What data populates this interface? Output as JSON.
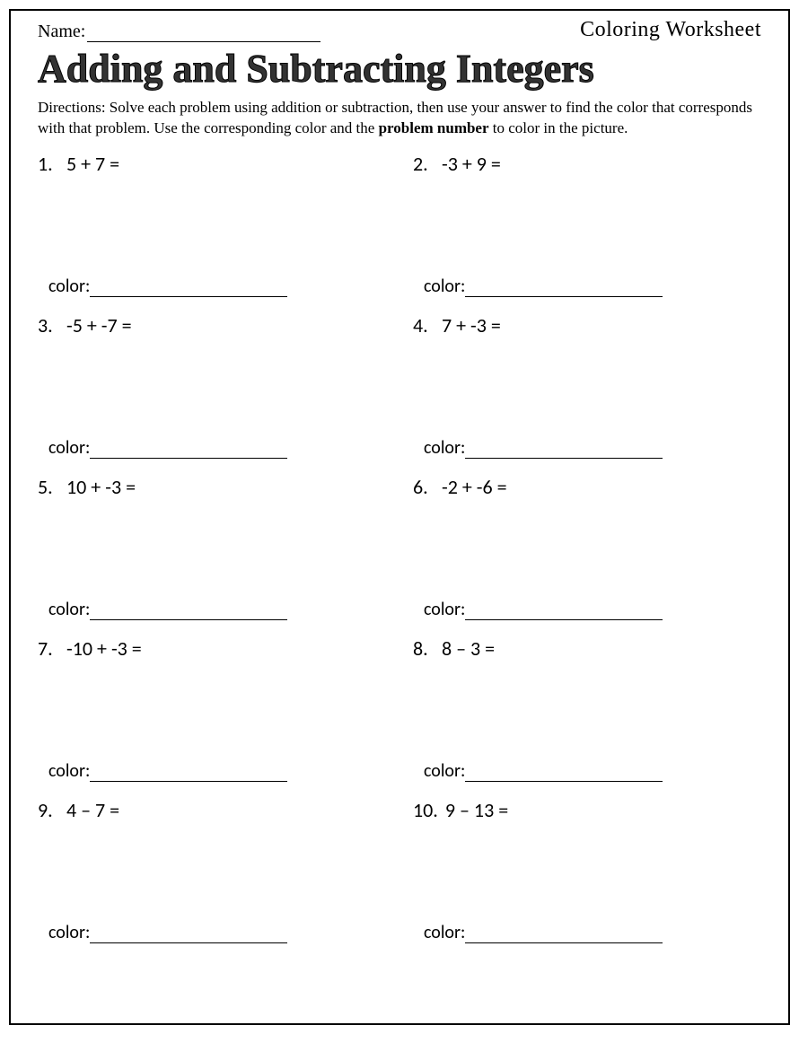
{
  "header": {
    "name_label": "Name:",
    "worksheet_type": "Coloring Worksheet"
  },
  "title": "Adding and Subtracting Integers",
  "directions": {
    "prefix": "Directions: Solve each problem using addition or subtraction, then use your answer to find the color that corresponds with that problem. Use the corresponding color and the ",
    "bold": "problem number",
    "suffix": " to color in the picture."
  },
  "color_label": "color:",
  "problems": [
    {
      "num": "1.",
      "expr": "5 + 7 ="
    },
    {
      "num": "2.",
      "expr": "-3 + 9 ="
    },
    {
      "num": "3.",
      "expr": "-5 + -7 ="
    },
    {
      "num": "4.",
      "expr": "7 + -3 ="
    },
    {
      "num": "5.",
      "expr": "10 + -3 ="
    },
    {
      "num": "6.",
      "expr": "-2 + -6 ="
    },
    {
      "num": "7.",
      "expr": "-10 + -3 ="
    },
    {
      "num": "8.",
      "expr": "8 – 3 ="
    },
    {
      "num": "9.",
      "expr": "4 – 7 ="
    },
    {
      "num": "10.",
      "expr": "9 – 13 ="
    }
  ]
}
